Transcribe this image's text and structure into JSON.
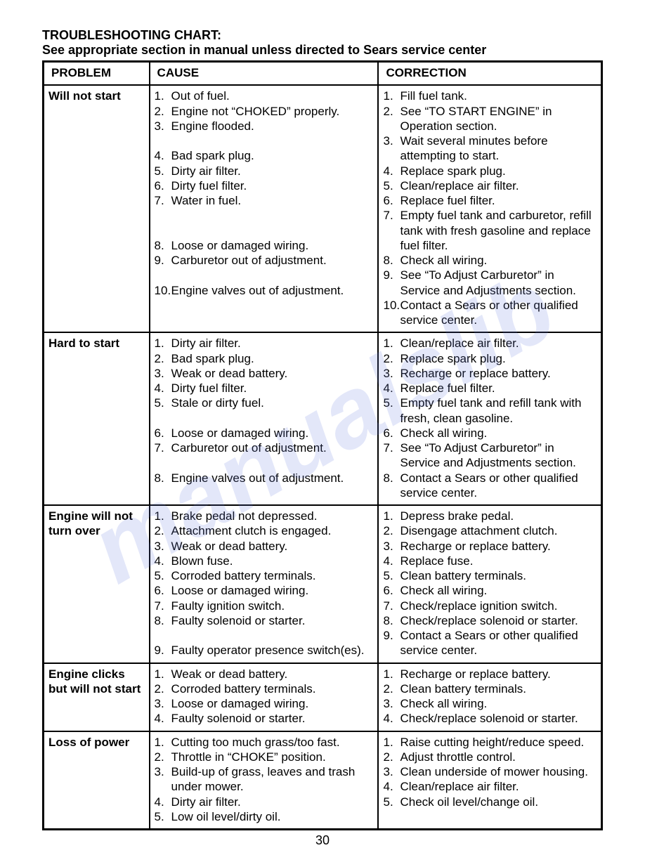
{
  "title": "TROUBLESHOOTING CHART:",
  "subtitle": "See appropriate section in manual unless directed to Sears service center",
  "headers": {
    "problem": "PROBLEM",
    "cause": "CAUSE",
    "correction": "CORRECTION"
  },
  "page_number": "30",
  "watermark": "manualslib",
  "rows": [
    {
      "problem": "Will not start",
      "causes": [
        "Out of fuel.",
        "Engine not “CHOKED” properly.",
        "Engine flooded.",
        "Bad spark plug.",
        "Dirty air filter.",
        "Dirty fuel filter.",
        "Water in fuel.",
        "Loose or damaged wiring.",
        "Carburetor out of adjustment.",
        "Engine valves out of adjustment."
      ],
      "corrections": [
        "Fill fuel tank.",
        "See “TO START ENGINE” in Operation section.",
        "Wait several minutes before attempting to start.",
        "Replace spark plug.",
        "Clean/replace air filter.",
        "Replace fuel filter.",
        "Empty fuel tank and carburetor, refill tank with fresh gasoline and replace fuel filter.",
        "Check all wiring.",
        "See “To Adjust Carburetor” in Service and Adjustments section.",
        "Contact a Sears or other qualified service center."
      ],
      "align": [
        [
          1,
          1
        ],
        [
          2,
          2
        ],
        [
          3,
          3
        ],
        [
          4,
          4
        ],
        [
          5,
          5
        ],
        [
          6,
          6
        ],
        [
          7,
          7
        ],
        [
          8,
          8
        ],
        [
          9,
          9
        ],
        [
          10,
          10
        ]
      ],
      "cause_spacers_after": {
        "3": 1,
        "7": 2,
        "9": 1
      }
    },
    {
      "problem": "Hard to start",
      "causes": [
        "Dirty air filter.",
        "Bad spark plug.",
        "Weak or dead battery.",
        "Dirty fuel filter.",
        "Stale or dirty fuel.",
        "Loose or damaged wiring.",
        "Carburetor out of adjustment.",
        "Engine valves out of adjustment."
      ],
      "corrections": [
        "Clean/replace air filter.",
        "Replace spark plug.",
        "Recharge or replace battery.",
        "Replace fuel filter.",
        "Empty fuel tank and refill tank with fresh, clean gasoline.",
        "Check all wiring.",
        "See “To Adjust Carburetor” in Service and Adjustments section.",
        "Contact a Sears or other qualified service center."
      ],
      "cause_spacers_after": {
        "5": 1,
        "7": 1
      }
    },
    {
      "problem": "Engine will not turn over",
      "causes": [
        "Brake pedal not depressed.",
        "Attachment clutch is engaged.",
        "Weak or dead battery.",
        "Blown fuse.",
        "Corroded battery terminals.",
        "Loose or damaged wiring.",
        "Faulty ignition switch.",
        "Faulty solenoid or starter.",
        "Faulty operator presence switch(es)."
      ],
      "corrections": [
        "Depress brake pedal.",
        "Disengage attachment clutch.",
        "Recharge or replace battery.",
        "Replace fuse.",
        "Clean battery terminals.",
        "Check all wiring.",
        "Check/replace ignition switch.",
        "Check/replace solenoid or starter.",
        "Contact a Sears or other qualified service center."
      ],
      "cause_spacers_after": {
        "8": 1
      }
    },
    {
      "problem": "Engine clicks but will not start",
      "causes": [
        "Weak or dead battery.",
        "Corroded battery terminals.",
        "Loose or damaged wiring.",
        "Faulty solenoid or starter."
      ],
      "corrections": [
        "Recharge or replace battery.",
        "Clean battery terminals.",
        "Check all wiring.",
        "Check/replace solenoid or starter."
      ]
    },
    {
      "problem": "Loss of power",
      "causes": [
        "Cutting too much grass/too fast.",
        "Throttle in “CHOKE” position.",
        "Build-up of grass, leaves and trash under mower.",
        "Dirty air filter.",
        "Low oil level/dirty oil."
      ],
      "corrections": [
        "Raise cutting height/reduce speed.",
        "Adjust throttle control.",
        "Clean underside of mower housing.",
        "Clean/replace air filter.",
        "Check oil level/change oil."
      ]
    }
  ]
}
